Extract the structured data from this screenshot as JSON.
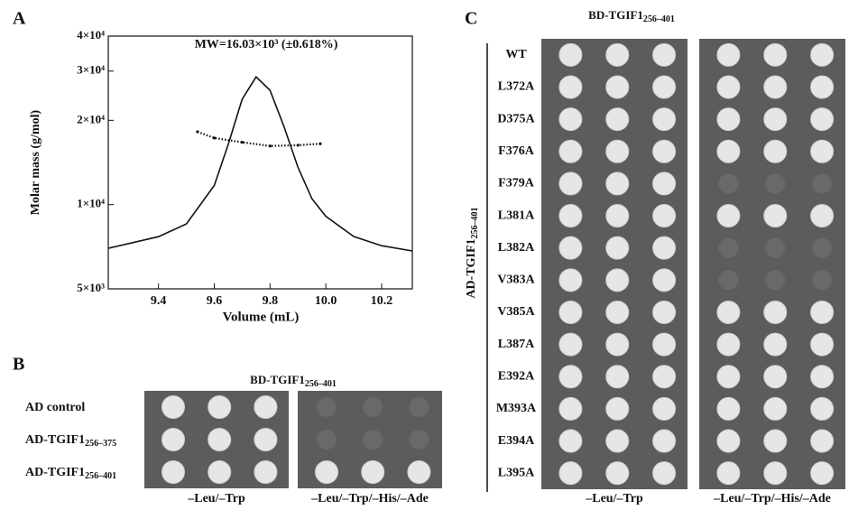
{
  "chart_data": {
    "type": "line",
    "panel": "A",
    "annotation": "MW=16.03×10³ (±0.618%)",
    "x_label": "Volume (mL)",
    "y_label": "Molar mass (g/mol)",
    "xlim": [
      9.22,
      10.31
    ],
    "ylim": [
      5000,
      40000
    ],
    "ylog": true,
    "xticks": [
      9.4,
      9.6,
      9.8,
      {
        "value": 10,
        "label": "10.0"
      },
      10.2
    ],
    "yticks": [
      {
        "value": 5000,
        "label": "5×10³"
      },
      {
        "value": 10000,
        "label": "1×10⁴"
      },
      {
        "value": 20000,
        "label": "2×10⁴"
      },
      {
        "value": 30000,
        "label": "3×10⁴"
      },
      {
        "value": 40000,
        "label": "4×10⁴"
      }
    ],
    "series": [
      {
        "color": "#111111",
        "style": "solid",
        "x": [
          9.22,
          9.4,
          9.5,
          9.6,
          9.65,
          9.7,
          9.75,
          9.8,
          9.85,
          9.9,
          9.95,
          10.0,
          10.1,
          10.2,
          10.31
        ],
        "values": [
          6980,
          7680,
          8530,
          11700,
          16400,
          23800,
          28600,
          25600,
          19000,
          13600,
          10500,
          9080,
          7690,
          7130,
          6830
        ]
      },
      {
        "color": "#111111",
        "style": "dotted",
        "x": [
          9.54,
          9.6,
          9.7,
          9.8,
          9.9,
          9.98
        ],
        "values": [
          18200,
          17300,
          16700,
          16200,
          16300,
          16500
        ]
      }
    ]
  },
  "panel_b": {
    "label": "B",
    "title": {
      "text": "BD-TGIF1",
      "sub": "256–401"
    },
    "rows": [
      {
        "text": "AD control"
      },
      {
        "text": "AD-TGIF1",
        "sub": "256–375"
      },
      {
        "text": "AD-TGIF1",
        "sub": "256–401"
      }
    ],
    "media": [
      "–Leu/–Trp",
      "–Leu/–Trp/–His/–Ade"
    ]
  },
  "panel_c": {
    "label": "C",
    "title": {
      "text": "BD-TGIF1",
      "sub": "256–401"
    },
    "side_label": {
      "text": "AD-TGIF1",
      "sub": "256–401"
    },
    "rows": [
      "WT",
      "L372A",
      "D375A",
      "F376A",
      "F379A",
      "L381A",
      "L382A",
      "V383A",
      "V385A",
      "L387A",
      "E392A",
      "M393A",
      "E394A",
      "L395A"
    ],
    "media": [
      "–Leu/–Trp",
      "–Leu/–Trp/–His/–Ade"
    ]
  }
}
